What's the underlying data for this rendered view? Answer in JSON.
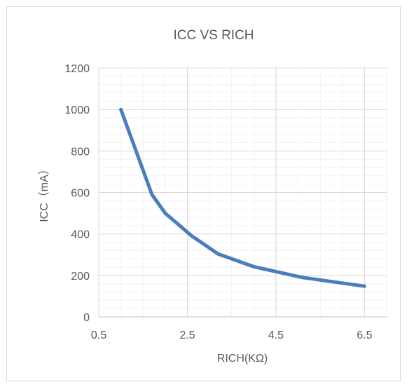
{
  "chart_data": {
    "type": "line",
    "title": "ICC VS RICH",
    "xlabel": "RICH(KΩ)",
    "ylabel": "ICC（mA）",
    "xlim": [
      0.5,
      7.0
    ],
    "ylim": [
      0,
      1200
    ],
    "x_ticks": [
      0.5,
      2.5,
      4.5,
      6.5
    ],
    "x_tick_labels": [
      "0.5",
      "2.5",
      "4.5",
      "6.5"
    ],
    "x_minor_step": 0.5,
    "y_ticks": [
      0,
      200,
      400,
      600,
      800,
      1000,
      1200
    ],
    "y_tick_labels": [
      "0",
      "200",
      "400",
      "600",
      "800",
      "1000",
      "1200"
    ],
    "y_minor_step": 40,
    "grid": true,
    "legend": "none",
    "series": [
      {
        "color": "#4a7ebb",
        "x": [
          1.0,
          1.7,
          2.0,
          2.6,
          3.2,
          4.0,
          5.1,
          6.5
        ],
        "y": [
          1000,
          590,
          500,
          390,
          303,
          242,
          190,
          148
        ]
      }
    ]
  }
}
